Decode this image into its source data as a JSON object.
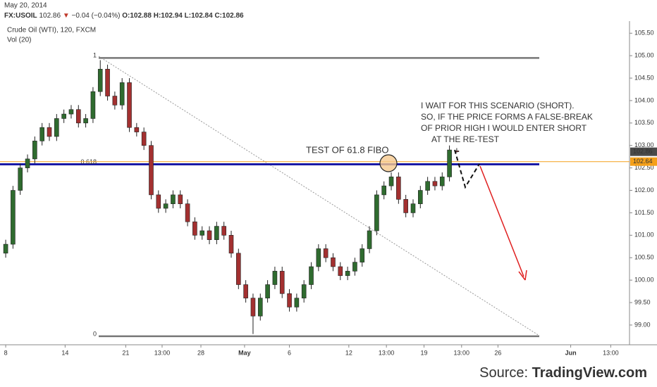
{
  "header": {
    "date": "May 20, 2014",
    "symbol": "FX:USOIL",
    "last": "102.86",
    "arrow": "▼",
    "change": "−0.04 (−0.04%)",
    "o": "O:102.88",
    "h": "H:102.94",
    "l": "L:102.84",
    "c": "C:102.86",
    "instrument": "Crude Oil (WTI), 120, FXCM",
    "volume": "Vol (20)"
  },
  "chart_data": {
    "type": "candlestick",
    "up_color": "#2f6b2f",
    "down_color": "#a33030",
    "x": [
      0,
      0.6,
      1.2,
      1.8,
      2.4,
      3,
      3.6,
      4.2,
      4.8,
      5.4,
      6,
      6.6,
      7.2,
      7.8,
      8.4,
      9,
      9.6,
      10.2,
      10.8,
      11.4,
      12,
      12.6,
      13.2,
      13.8,
      14.4,
      15,
      15.6,
      16.2,
      16.8,
      17.4,
      18,
      18.6,
      19.2,
      19.8,
      20.4,
      21,
      21.6,
      22.2,
      22.8,
      23.4,
      24,
      24.6,
      25.2,
      25.8,
      26.4,
      27,
      27.6,
      28.2,
      28.8,
      29.4,
      30,
      30.6,
      31.2,
      31.8,
      32.4,
      33,
      33.6,
      34.2,
      34.8,
      35.4,
      36,
      36.6,
      37.2
    ],
    "open": [
      100.6,
      100.8,
      102.0,
      102.5,
      102.7,
      103.1,
      103.4,
      103.2,
      103.6,
      103.7,
      103.8,
      103.5,
      103.6,
      104.2,
      104.7,
      104.1,
      103.9,
      104.4,
      103.4,
      103.3,
      103.0,
      101.9,
      101.6,
      101.7,
      101.9,
      101.7,
      101.3,
      101.0,
      101.1,
      100.9,
      101.2,
      101.0,
      100.6,
      99.9,
      99.6,
      99.2,
      99.6,
      99.9,
      100.2,
      99.7,
      99.4,
      99.6,
      99.9,
      100.3,
      100.7,
      100.5,
      100.3,
      100.1,
      100.2,
      100.4,
      100.7,
      101.1,
      101.9,
      102.1,
      102.3,
      101.8,
      101.5,
      101.7,
      102.0,
      102.2,
      102.1,
      102.3,
      102.88
    ],
    "high": [
      100.9,
      102.1,
      102.6,
      102.8,
      103.2,
      103.5,
      103.5,
      103.7,
      103.8,
      103.9,
      103.9,
      103.7,
      104.3,
      104.9,
      104.8,
      104.2,
      104.5,
      104.5,
      103.5,
      103.4,
      103.1,
      102.0,
      101.8,
      102.0,
      102.0,
      101.8,
      101.4,
      101.2,
      101.2,
      101.3,
      101.3,
      101.1,
      100.7,
      100.0,
      99.7,
      99.7,
      100.0,
      100.3,
      100.3,
      99.8,
      99.7,
      100.0,
      100.4,
      100.8,
      100.8,
      100.6,
      100.4,
      100.3,
      100.5,
      100.8,
      101.2,
      102.0,
      102.2,
      102.4,
      102.4,
      101.9,
      101.8,
      102.1,
      102.3,
      102.3,
      102.4,
      103.0,
      102.94
    ],
    "low": [
      100.5,
      100.7,
      101.9,
      102.4,
      102.6,
      103.0,
      103.1,
      103.1,
      103.5,
      103.6,
      103.4,
      103.4,
      103.5,
      104.1,
      104.0,
      103.8,
      103.8,
      103.3,
      103.2,
      102.9,
      101.8,
      101.5,
      101.5,
      101.6,
      101.6,
      101.2,
      100.9,
      100.9,
      100.8,
      100.8,
      100.9,
      100.5,
      99.8,
      99.5,
      98.8,
      99.1,
      99.5,
      99.8,
      99.6,
      99.3,
      99.3,
      99.5,
      99.8,
      100.2,
      100.4,
      100.2,
      100.0,
      100.0,
      100.1,
      100.3,
      100.6,
      101.0,
      101.8,
      102.0,
      101.7,
      101.4,
      101.4,
      101.6,
      101.9,
      102.0,
      102.0,
      102.2,
      102.84
    ],
    "close": [
      100.8,
      102.0,
      102.5,
      102.7,
      103.1,
      103.4,
      103.2,
      103.6,
      103.7,
      103.8,
      103.5,
      103.6,
      104.2,
      104.7,
      104.1,
      103.9,
      104.4,
      103.4,
      103.3,
      103.0,
      101.9,
      101.6,
      101.7,
      101.9,
      101.7,
      101.3,
      101.0,
      101.1,
      100.9,
      101.2,
      101.0,
      100.6,
      99.9,
      99.6,
      99.2,
      99.6,
      99.9,
      100.2,
      99.7,
      99.4,
      99.6,
      99.9,
      100.3,
      100.7,
      100.5,
      100.3,
      100.1,
      100.2,
      100.4,
      100.7,
      101.1,
      101.9,
      102.1,
      102.3,
      101.8,
      101.5,
      101.7,
      102.0,
      102.2,
      102.1,
      102.3,
      102.9,
      102.86
    ],
    "xlim": [
      -0.47,
      51.45
    ],
    "xticks": [
      {
        "value": 0,
        "label": "8"
      },
      {
        "value": 4.9,
        "label": "14"
      },
      {
        "value": 9.9,
        "label": "21"
      },
      {
        "value": 12.9,
        "label": "13:00"
      },
      {
        "value": 16.1,
        "label": "28"
      },
      {
        "value": 19.7,
        "label": "May"
      },
      {
        "value": 23.4,
        "label": "6"
      },
      {
        "value": 28.3,
        "label": "12"
      },
      {
        "value": 31.4,
        "label": "13:00"
      },
      {
        "value": 34.5,
        "label": "19"
      },
      {
        "value": 37.6,
        "label": "13:00"
      },
      {
        "value": 40.6,
        "label": "26"
      },
      {
        "value": 46.6,
        "label": "Jun"
      },
      {
        "value": 49.9,
        "label": "13:00"
      }
    ],
    "ylim": [
      98.56,
      105.77
    ],
    "yticks": [
      {
        "value": 99,
        "label": "99.00"
      },
      {
        "value": 99.5,
        "label": "99.50"
      },
      {
        "value": 100,
        "label": "100.00"
      },
      {
        "value": 100.5,
        "label": "100.50"
      },
      {
        "value": 101,
        "label": "101.00"
      },
      {
        "value": 101.5,
        "label": "101.50"
      },
      {
        "value": 102,
        "label": "102.00"
      },
      {
        "value": 102.5,
        "label": "102.50"
      },
      {
        "value": 103,
        "label": "103.00"
      },
      {
        "value": 103.5,
        "label": "103.50"
      },
      {
        "value": 104,
        "label": "104.00"
      },
      {
        "value": 104.5,
        "label": "104.50"
      },
      {
        "value": 105,
        "label": "105.00"
      },
      {
        "value": 105.5,
        "label": "105.50"
      }
    ],
    "price_tags": [
      {
        "value": 102.86,
        "color": "#4a4a4a",
        "line": false
      },
      {
        "value": 102.64,
        "color": "#f5a01a",
        "line": true
      }
    ],
    "fib_levels": [
      {
        "label": "1",
        "value": 104.95,
        "color": "#777777"
      },
      {
        "label": "0.618",
        "value": 102.58,
        "color": "#1a1aa6"
      },
      {
        "label": "0",
        "value": 98.75,
        "color": "#777777"
      }
    ],
    "annotations": {
      "test": "TEST OF 61.8 FIBO",
      "scenario": [
        "I WAIT FOR THIS SCENARIO (SHORT).",
        "SO, IF THE PRICE FORMS A FALSE-BREAK",
        "OF PRIOR HIGH I WOULD ENTER SHORT",
        "AT THE RE-TEST"
      ]
    }
  },
  "source": {
    "prefix": "Source:",
    "name": "TradingView.com"
  }
}
